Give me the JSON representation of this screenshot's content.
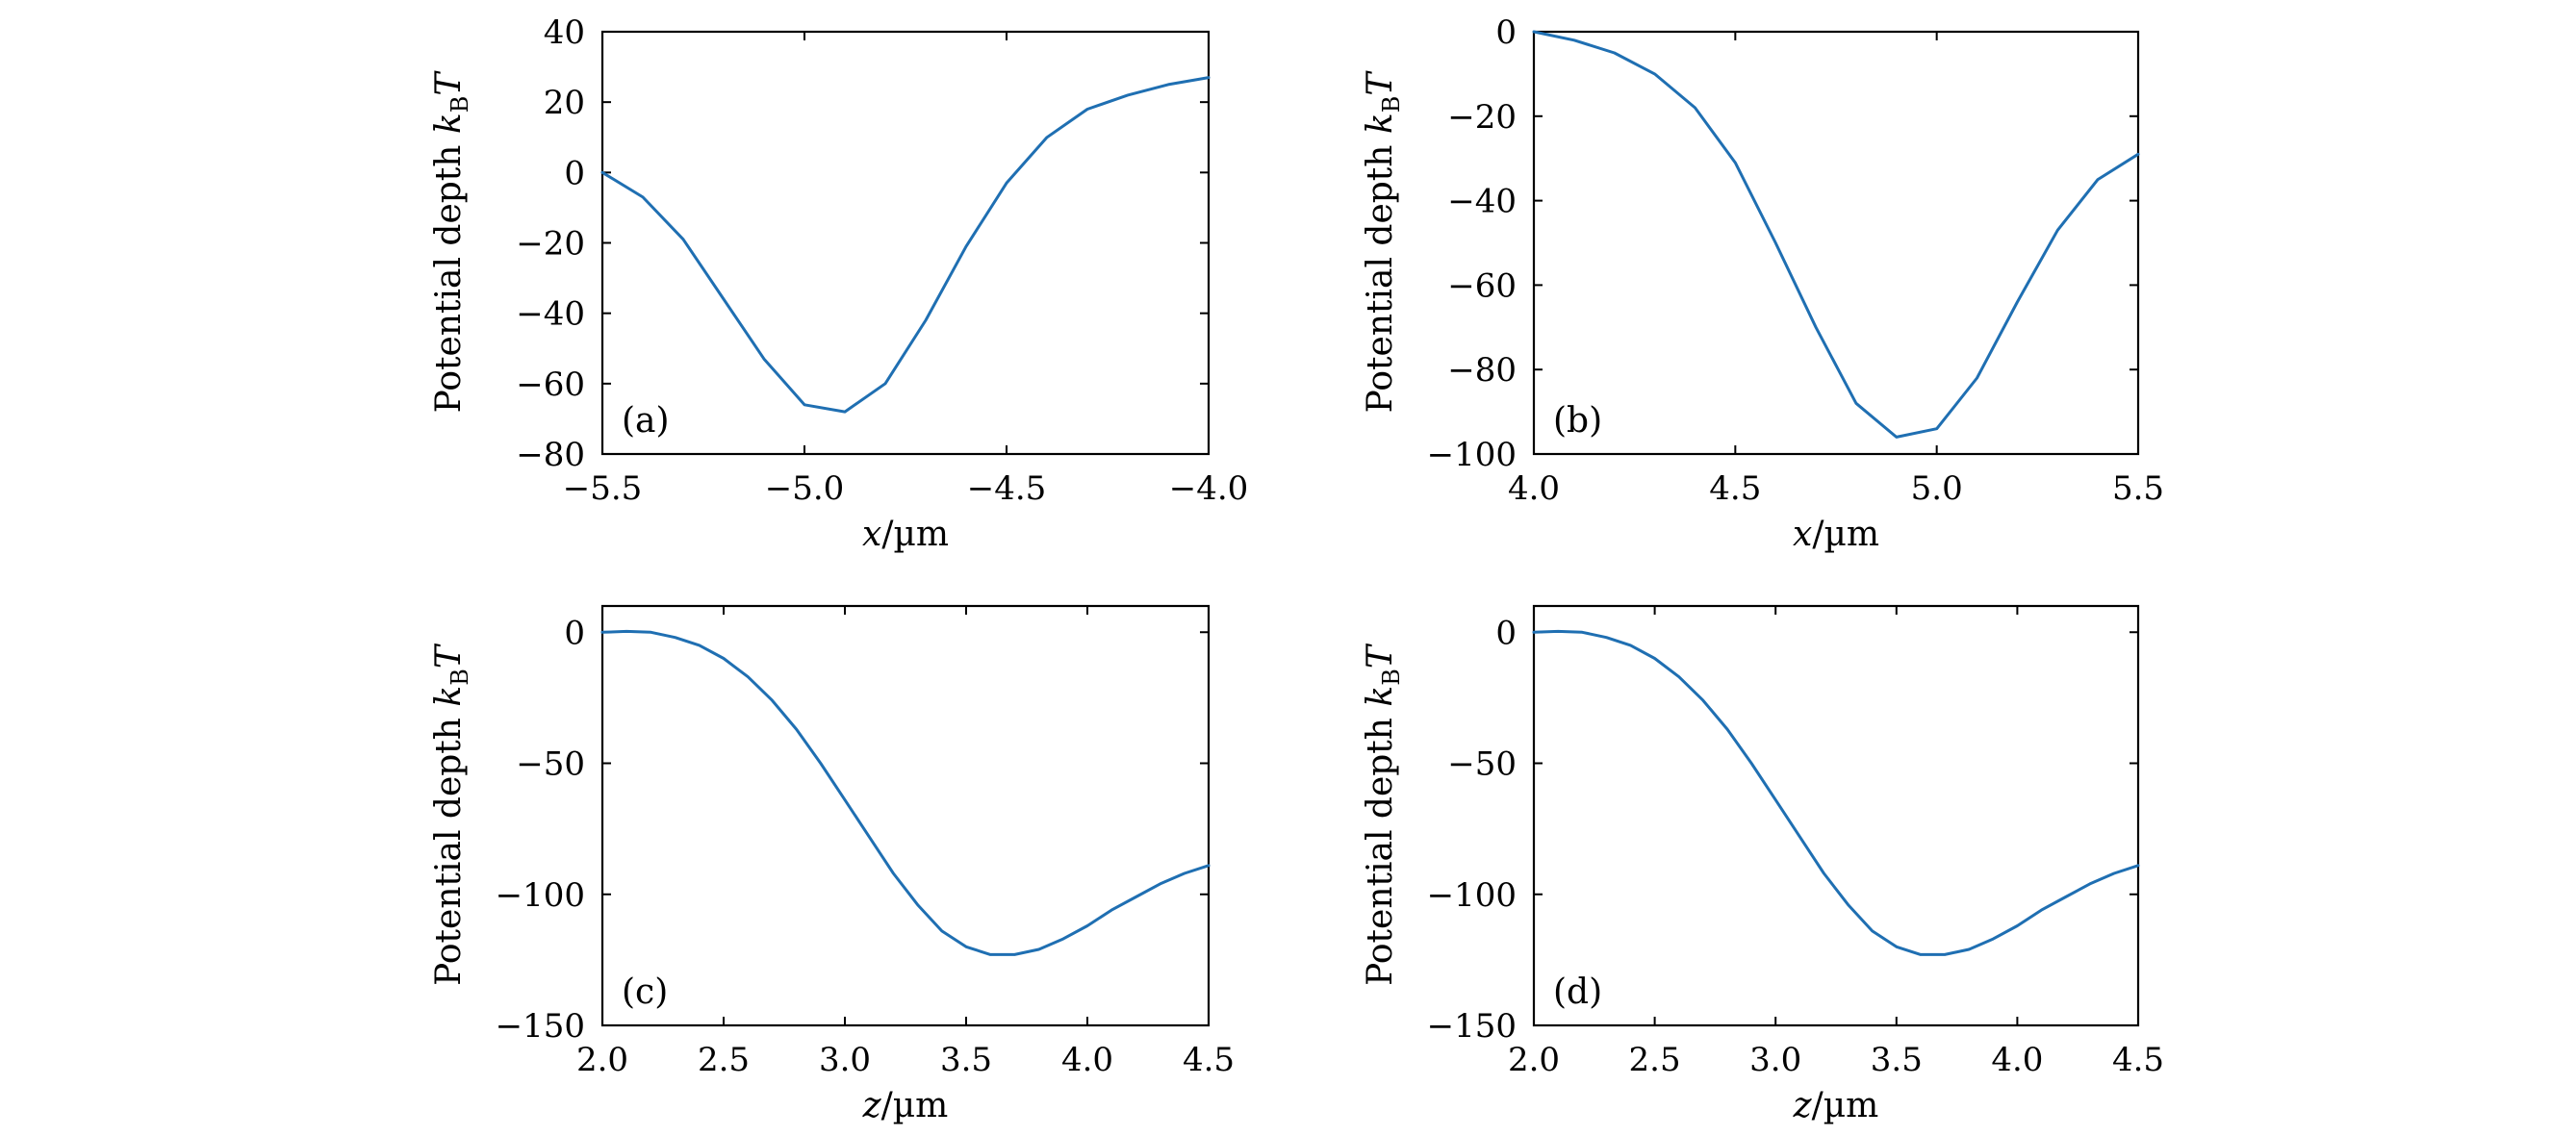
{
  "figure": {
    "line_color": "#1f6fb2"
  },
  "chart_data": [
    {
      "type": "line",
      "panel_label": "(a)",
      "xlabel_var": "x",
      "xlabel_unit": "/µm",
      "ylabel_text": "Potential depth ",
      "ylabel_k": "k",
      "ylabel_sub": "B",
      "ylabel_T": "T",
      "xlim": [
        -5.5,
        -4.0
      ],
      "ylim": [
        -80,
        40
      ],
      "xticks": [
        -5.5,
        -5.0,
        -4.5,
        -4.0
      ],
      "xtick_labels": [
        "−5.5",
        "−5.0",
        "−4.5",
        "−4.0"
      ],
      "yticks": [
        -80,
        -60,
        -40,
        -20,
        0,
        20,
        40
      ],
      "ytick_labels": [
        "−80",
        "−60",
        "−40",
        "−20",
        "0",
        "20",
        "40"
      ],
      "x": [
        -5.5,
        -5.4,
        -5.3,
        -5.2,
        -5.1,
        -5.0,
        -4.9,
        -4.8,
        -4.7,
        -4.6,
        -4.5,
        -4.4,
        -4.3,
        -4.2,
        -4.1,
        -4.0
      ],
      "y": [
        0,
        -7,
        -19,
        -36,
        -53,
        -66,
        -68,
        -60,
        -42,
        -21,
        -3,
        10,
        18,
        22,
        25,
        27
      ]
    },
    {
      "type": "line",
      "panel_label": "(b)",
      "xlabel_var": "x",
      "xlabel_unit": "/µm",
      "ylabel_text": "Potential depth ",
      "ylabel_k": "k",
      "ylabel_sub": "B",
      "ylabel_T": "T",
      "xlim": [
        4.0,
        5.5
      ],
      "ylim": [
        -100,
        0
      ],
      "xticks": [
        4.0,
        4.5,
        5.0,
        5.5
      ],
      "xtick_labels": [
        "4.0",
        "4.5",
        "5.0",
        "5.5"
      ],
      "yticks": [
        -100,
        -80,
        -60,
        -40,
        -20,
        0
      ],
      "ytick_labels": [
        "−100",
        "−80",
        "−60",
        "−40",
        "−20",
        "0"
      ],
      "x": [
        4.0,
        4.1,
        4.2,
        4.3,
        4.4,
        4.5,
        4.6,
        4.7,
        4.8,
        4.9,
        5.0,
        5.1,
        5.2,
        5.3,
        5.4,
        5.5
      ],
      "y": [
        0,
        -2,
        -5,
        -10,
        -18,
        -31,
        -50,
        -70,
        -88,
        -96,
        -94,
        -82,
        -64,
        -47,
        -35,
        -29
      ]
    },
    {
      "type": "line",
      "panel_label": "(c)",
      "xlabel_var": "z",
      "xlabel_unit": "/µm",
      "ylabel_text": "Potential depth ",
      "ylabel_k": "k",
      "ylabel_sub": "B",
      "ylabel_T": "T",
      "xlim": [
        2.0,
        4.5
      ],
      "ylim": [
        -150,
        10
      ],
      "xticks": [
        2.0,
        2.5,
        3.0,
        3.5,
        4.0,
        4.5
      ],
      "xtick_labels": [
        "2.0",
        "2.5",
        "3.0",
        "3.5",
        "4.0",
        "4.5"
      ],
      "yticks": [
        -150,
        -100,
        -50,
        0
      ],
      "ytick_labels": [
        "−150",
        "−100",
        "−50",
        "0"
      ],
      "x": [
        2.0,
        2.1,
        2.2,
        2.3,
        2.4,
        2.5,
        2.6,
        2.7,
        2.8,
        2.9,
        3.0,
        3.1,
        3.2,
        3.3,
        3.4,
        3.5,
        3.6,
        3.7,
        3.8,
        3.9,
        4.0,
        4.1,
        4.2,
        4.3,
        4.4,
        4.5
      ],
      "y": [
        0,
        0.3,
        0,
        -2,
        -5,
        -10,
        -17,
        -26,
        -37,
        -50,
        -64,
        -78,
        -92,
        -104,
        -114,
        -120,
        -123,
        -123,
        -121,
        -117,
        -112,
        -106,
        -101,
        -96,
        -92,
        -89
      ]
    },
    {
      "type": "line",
      "panel_label": "(d)",
      "xlabel_var": "z",
      "xlabel_unit": "/µm",
      "ylabel_text": "Potential depth ",
      "ylabel_k": "k",
      "ylabel_sub": "B",
      "ylabel_T": "T",
      "xlim": [
        2.0,
        4.5
      ],
      "ylim": [
        -150,
        10
      ],
      "xticks": [
        2.0,
        2.5,
        3.0,
        3.5,
        4.0,
        4.5
      ],
      "xtick_labels": [
        "2.0",
        "2.5",
        "3.0",
        "3.5",
        "4.0",
        "4.5"
      ],
      "yticks": [
        -150,
        -100,
        -50,
        0
      ],
      "ytick_labels": [
        "−150",
        "−100",
        "−50",
        "0"
      ],
      "x": [
        2.0,
        2.1,
        2.2,
        2.3,
        2.4,
        2.5,
        2.6,
        2.7,
        2.8,
        2.9,
        3.0,
        3.1,
        3.2,
        3.3,
        3.4,
        3.5,
        3.6,
        3.7,
        3.8,
        3.9,
        4.0,
        4.1,
        4.2,
        4.3,
        4.4,
        4.5
      ],
      "y": [
        0,
        0.3,
        0,
        -2,
        -5,
        -10,
        -17,
        -26,
        -37,
        -50,
        -64,
        -78,
        -92,
        -104,
        -114,
        -120,
        -123,
        -123,
        -121,
        -117,
        -112,
        -106,
        -101,
        -96,
        -92,
        -89
      ]
    }
  ]
}
